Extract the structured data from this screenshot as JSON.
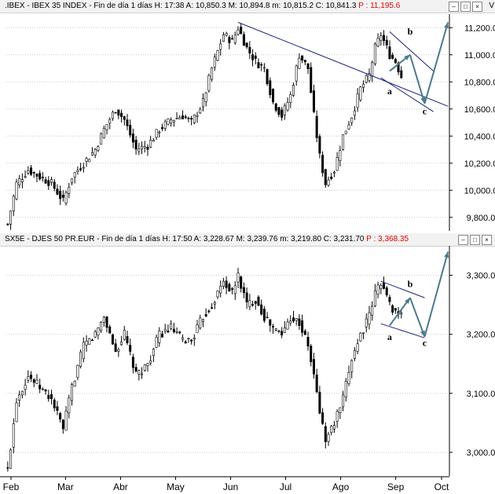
{
  "top_panel": {
    "title": ".IBEX - IBEX 35 INDEX - Fin de día 1 días  H: 17:38  A: 10,850.3  M: 10,894.8  m: 10,815.2  C: 10,841.3",
    "projection": "P : 11,195.6",
    "corner_tag": "V"
  },
  "bottom_panel": {
    "title": "SX5E - DJES 50 PR.EUR - Fin de día 1 días  H: 17:50  A: 3,228.67  M: 3,239.76  m: 3,219.80  C: 3,231.70",
    "projection": "P : 3,368.35"
  },
  "colors": {
    "candles": "#000000",
    "trendlines": "#1a237e",
    "projection_arrows": "#4a7a8a",
    "grid": "#c8c8c8"
  },
  "chart_data": [
    {
      "type": "candlestick",
      "series_name": "IBEX 35 INDEX",
      "ylim": [
        9700,
        11300
      ],
      "yticks": [
        9800,
        10000,
        10200,
        10400,
        10600,
        10800,
        11000,
        11200
      ],
      "ytick_labels": [
        "9,800.0",
        "10,000.0",
        "10,200.0",
        "10,400.0",
        "10,600.0",
        "10,800.0",
        "11,000.0",
        "11,200.0"
      ],
      "x_trading_days": 152,
      "close_anchors": [
        [
          0,
          9750
        ],
        [
          3,
          10050
        ],
        [
          7,
          10150
        ],
        [
          11,
          10100
        ],
        [
          15,
          10050
        ],
        [
          19,
          9920
        ],
        [
          22,
          10100
        ],
        [
          26,
          10200
        ],
        [
          30,
          10300
        ],
        [
          33,
          10450
        ],
        [
          37,
          10600
        ],
        [
          40,
          10520
        ],
        [
          44,
          10300
        ],
        [
          48,
          10330
        ],
        [
          52,
          10450
        ],
        [
          56,
          10520
        ],
        [
          60,
          10550
        ],
        [
          63,
          10500
        ],
        [
          67,
          10650
        ],
        [
          70,
          10900
        ],
        [
          74,
          11150
        ],
        [
          77,
          11100
        ],
        [
          79,
          11200
        ],
        [
          82,
          11050
        ],
        [
          85,
          10950
        ],
        [
          88,
          10900
        ],
        [
          91,
          10650
        ],
        [
          94,
          10550
        ],
        [
          97,
          10700
        ],
        [
          100,
          11000
        ],
        [
          103,
          10900
        ],
        [
          105,
          10550
        ],
        [
          107,
          10250
        ],
        [
          109,
          10050
        ],
        [
          112,
          10150
        ],
        [
          115,
          10400
        ],
        [
          118,
          10550
        ],
        [
          121,
          10750
        ],
        [
          124,
          10850
        ],
        [
          126,
          11050
        ],
        [
          128,
          11150
        ],
        [
          131,
          11000
        ],
        [
          133,
          10950
        ],
        [
          135,
          10841
        ]
      ],
      "trendlines": [
        {
          "from": [
            79,
            11240
          ],
          "to": [
            151,
            10620
          ]
        },
        {
          "from": [
            131,
            11170
          ],
          "to": [
            146,
            10880
          ]
        },
        {
          "from": [
            128,
            10830
          ],
          "to": [
            146,
            10580
          ]
        }
      ],
      "projection_path": [
        [
          131,
          10880
        ],
        [
          138,
          11000
        ],
        [
          143,
          10640
        ],
        [
          151,
          11240
        ]
      ],
      "wave_labels": [
        {
          "text": "a",
          "x": 131,
          "y": 10710
        },
        {
          "text": "b",
          "x": 138,
          "y": 11150
        },
        {
          "text": "c",
          "x": 143,
          "y": 10560
        }
      ]
    },
    {
      "type": "candlestick",
      "series_name": "DJES 50 PR.EUR",
      "ylim": [
        2960,
        3350
      ],
      "yticks": [
        3000,
        3100,
        3200,
        3300
      ],
      "ytick_labels": [
        "3,000.0",
        "3,100.0",
        "3,200.0",
        "3,300.0"
      ],
      "x_trading_days": 152,
      "x_tick_labels": [
        "Feb",
        "Mar",
        "Abr",
        "May",
        "Jun",
        "Jul",
        "Ago",
        "Sep",
        "Oct"
      ],
      "close_anchors": [
        [
          0,
          2970
        ],
        [
          3,
          3090
        ],
        [
          7,
          3130
        ],
        [
          11,
          3110
        ],
        [
          15,
          3090
        ],
        [
          19,
          3040
        ],
        [
          22,
          3110
        ],
        [
          26,
          3180
        ],
        [
          30,
          3200
        ],
        [
          33,
          3230
        ],
        [
          37,
          3170
        ],
        [
          40,
          3200
        ],
        [
          44,
          3130
        ],
        [
          48,
          3150
        ],
        [
          52,
          3200
        ],
        [
          56,
          3210
        ],
        [
          60,
          3190
        ],
        [
          63,
          3190
        ],
        [
          67,
          3230
        ],
        [
          70,
          3250
        ],
        [
          74,
          3290
        ],
        [
          77,
          3270
        ],
        [
          79,
          3300
        ],
        [
          82,
          3250
        ],
        [
          85,
          3260
        ],
        [
          88,
          3230
        ],
        [
          91,
          3210
        ],
        [
          94,
          3200
        ],
        [
          97,
          3230
        ],
        [
          100,
          3220
        ],
        [
          103,
          3180
        ],
        [
          105,
          3130
        ],
        [
          107,
          3070
        ],
        [
          109,
          3020
        ],
        [
          112,
          3050
        ],
        [
          115,
          3090
        ],
        [
          118,
          3160
        ],
        [
          121,
          3200
        ],
        [
          124,
          3230
        ],
        [
          126,
          3270
        ],
        [
          128,
          3290
        ],
        [
          131,
          3250
        ],
        [
          133,
          3240
        ],
        [
          135,
          3232
        ]
      ],
      "trendlines": [
        {
          "from": [
            128,
            3290
          ],
          "to": [
            143,
            3262
          ]
        },
        {
          "from": [
            128,
            3218
          ],
          "to": [
            143,
            3194
          ]
        }
      ],
      "projection_path": [
        [
          131,
          3215
        ],
        [
          138,
          3262
        ],
        [
          143,
          3196
        ],
        [
          151,
          3340
        ]
      ],
      "wave_labels": [
        {
          "text": "a",
          "x": 131,
          "y": 3190
        },
        {
          "text": "b",
          "x": 138,
          "y": 3280
        },
        {
          "text": "c",
          "x": 143,
          "y": 3180
        }
      ]
    }
  ]
}
